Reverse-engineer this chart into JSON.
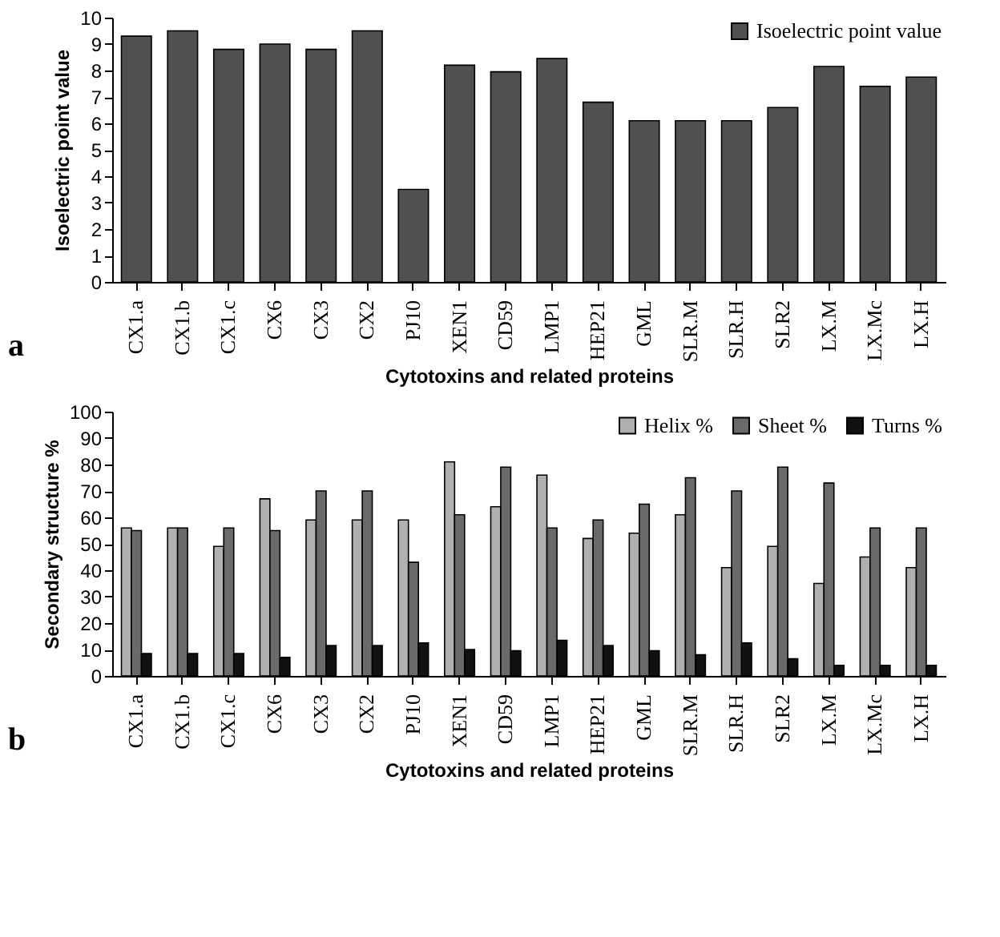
{
  "chart_data": [
    {
      "type": "bar",
      "xlabel": "Cytotoxins and related proteins",
      "ylabel": "Isoelectric point value",
      "categories": [
        "CX1.a",
        "CX1.b",
        "CX1.c",
        "CX6",
        "CX3",
        "CX2",
        "PJ10",
        "XEN1",
        "CD59",
        "LMP1",
        "HEP21",
        "GML",
        "SLR.M",
        "SLR.H",
        "SLR2",
        "LX.M",
        "LX.Mc",
        "LX.H"
      ],
      "series": [
        {
          "name": "Isoelectric point value",
          "color": "#505050",
          "values": [
            9.3,
            9.5,
            8.8,
            9.0,
            8.8,
            9.5,
            3.5,
            8.2,
            7.95,
            8.45,
            6.8,
            6.1,
            6.1,
            6.1,
            6.6,
            8.15,
            7.4,
            7.75
          ]
        }
      ],
      "ylim": [
        0,
        10
      ],
      "yticks": [
        0,
        1,
        2,
        3,
        4,
        5,
        6,
        7,
        8,
        9,
        10
      ],
      "grid": false,
      "legend": "top right",
      "annotations": [
        "a"
      ]
    },
    {
      "type": "bar",
      "xlabel": "Cytotoxins and related proteins",
      "ylabel": "Secondary structure %",
      "categories": [
        "CX1.a",
        "CX1.b",
        "CX1.c",
        "CX6",
        "CX3",
        "CX2",
        "PJ10",
        "XEN1",
        "CD59",
        "LMP1",
        "HEP21",
        "GML",
        "SLR.M",
        "SLR.H",
        "SLR2",
        "LX.M",
        "LX.Mc",
        "LX.H"
      ],
      "series": [
        {
          "name": "Helix %",
          "color": "#b0b0b0",
          "values": [
            56,
            56,
            49,
            67,
            59,
            59,
            59,
            81,
            64,
            76,
            52,
            54,
            61,
            41,
            49,
            35,
            45,
            41
          ]
        },
        {
          "name": "Sheet %",
          "color": "#6a6a6a",
          "values": [
            55,
            56,
            56,
            55,
            70,
            70,
            43,
            61,
            79,
            56,
            59,
            65,
            75,
            70,
            79,
            73,
            56,
            56
          ]
        },
        {
          "name": "Turns %",
          "color": "#111111",
          "values": [
            8.5,
            8.5,
            8.5,
            7,
            11.5,
            11.5,
            12.5,
            10,
            9.5,
            13.5,
            11.5,
            9.5,
            8,
            12.5,
            6.5,
            4,
            4,
            4
          ]
        }
      ],
      "ylim": [
        0,
        100
      ],
      "yticks": [
        0,
        10,
        20,
        30,
        40,
        50,
        60,
        70,
        80,
        90,
        100
      ],
      "grid": false,
      "legend": "top right",
      "annotations": [
        "b"
      ]
    }
  ]
}
